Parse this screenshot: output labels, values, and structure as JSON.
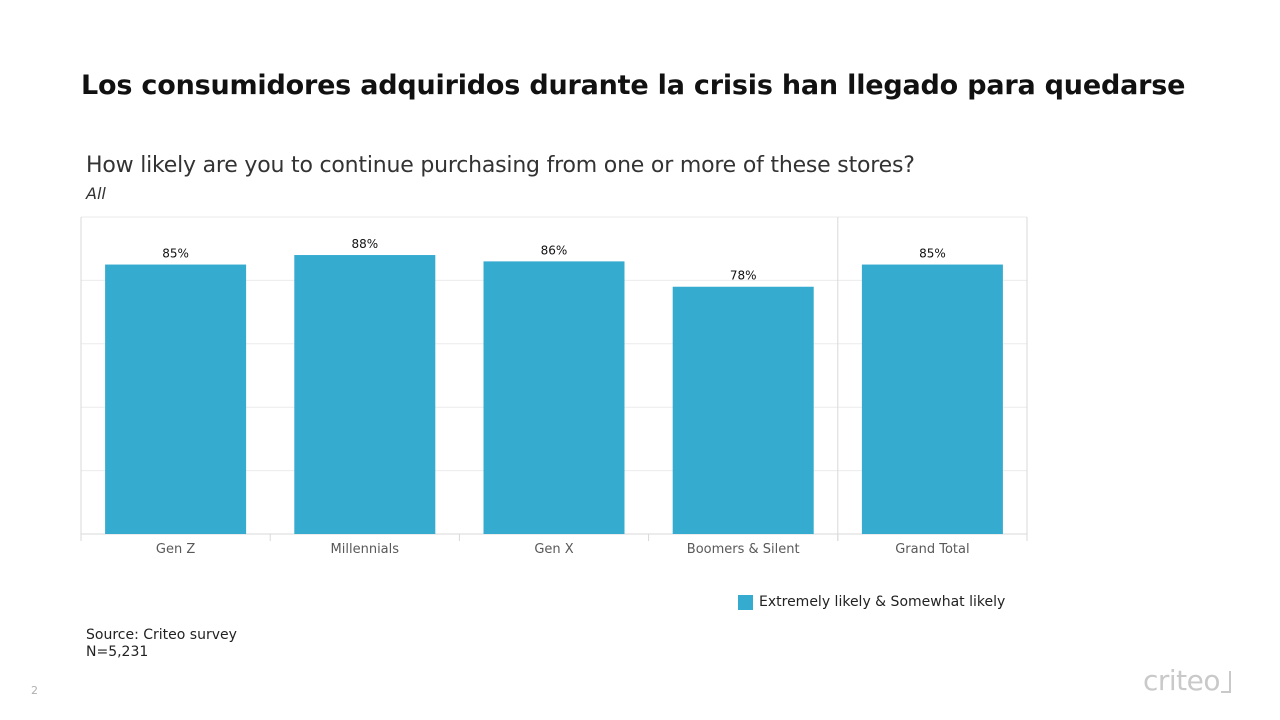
{
  "slide": {
    "title": "Los consumidores adquiridos durante la crisis han llegado para quedarse",
    "page_number": "2",
    "brand": "criteo"
  },
  "chart_data": {
    "type": "bar",
    "title": "How likely are you to continue purchasing from one or more of these stores?",
    "subtitle": "All",
    "categories": [
      "Gen Z",
      "Millennials",
      "Gen X",
      "Boomers & Silent",
      "Grand Total"
    ],
    "series": [
      {
        "name": "Extremely likely & Somewhat likely",
        "values": [
          85,
          88,
          86,
          78,
          85
        ],
        "labels": [
          "85%",
          "88%",
          "86%",
          "78%",
          "85%"
        ]
      }
    ],
    "ylim": [
      0,
      100
    ],
    "grid": true,
    "legend": "bottom-right",
    "colors": {
      "bar": "#35ABD0",
      "grid": "#ebebeb",
      "axis": "#d9d9d9"
    }
  },
  "source": {
    "line1": "Source: Criteo survey",
    "line2": "N=5,231"
  }
}
